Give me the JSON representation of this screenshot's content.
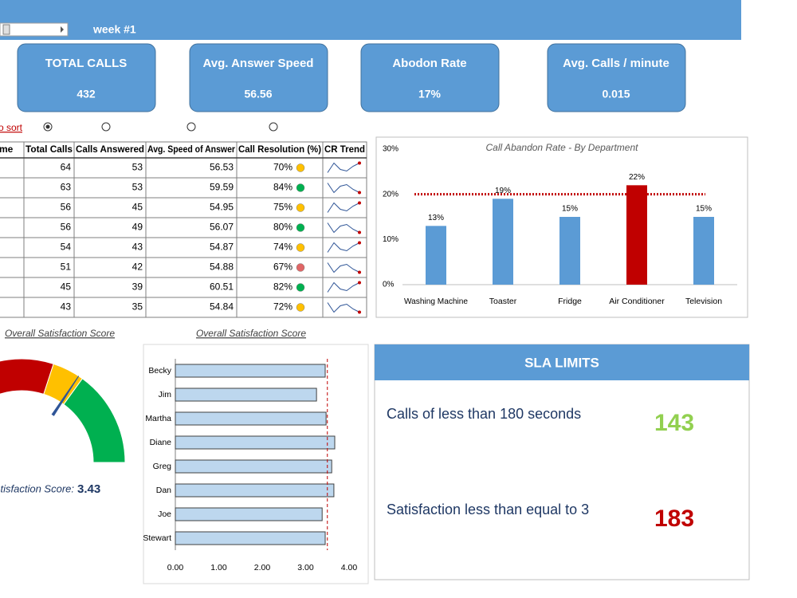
{
  "header": {
    "week": "week #1"
  },
  "kpis": [
    {
      "label": "TOTAL CALLS",
      "value": "432"
    },
    {
      "label": "Avg. Answer Speed",
      "value": "56.56"
    },
    {
      "label": "Abodon Rate",
      "value": "17%"
    },
    {
      "label": "Avg. Calls / minute",
      "value": "0.015"
    }
  ],
  "sort_label": "to sort",
  "table": {
    "columns": [
      "Name",
      "Total Calls",
      "Calls Answered",
      "Avg. Speed of Answer",
      "Call Resolution (%)",
      "CR Trend"
    ],
    "rows": [
      [
        "64",
        "53",
        "56.53",
        "70%"
      ],
      [
        "63",
        "53",
        "59.59",
        "84%"
      ],
      [
        "56",
        "45",
        "54.95",
        "75%"
      ],
      [
        "56",
        "49",
        "56.07",
        "80%"
      ],
      [
        "54",
        "43",
        "54.87",
        "74%"
      ],
      [
        "51",
        "42",
        "54.88",
        "67%"
      ],
      [
        "45",
        "39",
        "60.51",
        "82%"
      ],
      [
        "43",
        "35",
        "54.84",
        "72%"
      ]
    ],
    "indicator_colors": [
      "#ffc000",
      "#00b050",
      "#ffc000",
      "#00b050",
      "#ffc000",
      "#e06666",
      "#00b050",
      "#ffc000"
    ]
  },
  "chart_data": [
    {
      "type": "bar",
      "title": "Call Abandon Rate - By Department",
      "categories": [
        "Washing Machine",
        "Toaster",
        "Fridge",
        "Air Conditioner",
        "Television"
      ],
      "values": [
        13,
        19,
        15,
        22,
        15
      ],
      "value_labels": [
        "13%",
        "19%",
        "15%",
        "22%",
        "15%"
      ],
      "colors": [
        "#5b9bd5",
        "#5b9bd5",
        "#5b9bd5",
        "#c00000",
        "#5b9bd5"
      ],
      "ylim": [
        0,
        30
      ],
      "yticks": [
        {
          "value": 0,
          "label": "0%"
        },
        {
          "value": 10,
          "label": "10%"
        },
        {
          "value": 20,
          "label": "20%"
        },
        {
          "value": 30,
          "label": "30%"
        }
      ],
      "reference_line": 20,
      "reference_color": "#c00000"
    },
    {
      "type": "gauge",
      "title": "Overall Satisfaction Score",
      "label": "Satisfaction Score:",
      "value": 3.43,
      "range": [
        0,
        5
      ],
      "bands": [
        {
          "from": 0,
          "to": 3,
          "color": "#c00000"
        },
        {
          "from": 3,
          "to": 3.5,
          "color": "#ffc000"
        },
        {
          "from": 3.5,
          "to": 5,
          "color": "#00b050"
        }
      ],
      "needle_color": "#2f5597"
    },
    {
      "type": "hbar",
      "title": "Overall Satisfaction Score",
      "categories": [
        "Becky",
        "Jim",
        "Martha",
        "Diane",
        "Greg",
        "Dan",
        "Joe",
        "Stewart"
      ],
      "values": [
        3.45,
        3.25,
        3.47,
        3.67,
        3.6,
        3.65,
        3.38,
        3.45
      ],
      "color": "#bdd7ee",
      "xlim": [
        0,
        4
      ],
      "xticks": [
        {
          "value": 0,
          "label": "0.00"
        },
        {
          "value": 1,
          "label": "1.00"
        },
        {
          "value": 2,
          "label": "2.00"
        },
        {
          "value": 3,
          "label": "3.00"
        },
        {
          "value": 4,
          "label": "4.00"
        }
      ],
      "reference_line": 3.5,
      "reference_color": "#c00000"
    }
  ],
  "sla": {
    "title": "SLA LIMITS",
    "items": [
      {
        "label": "Calls of less than 180 seconds",
        "value": "143",
        "color": "#92d050"
      },
      {
        "label": "Satisfaction less than equal to 3",
        "value": "183",
        "color": "#c00000"
      }
    ]
  }
}
